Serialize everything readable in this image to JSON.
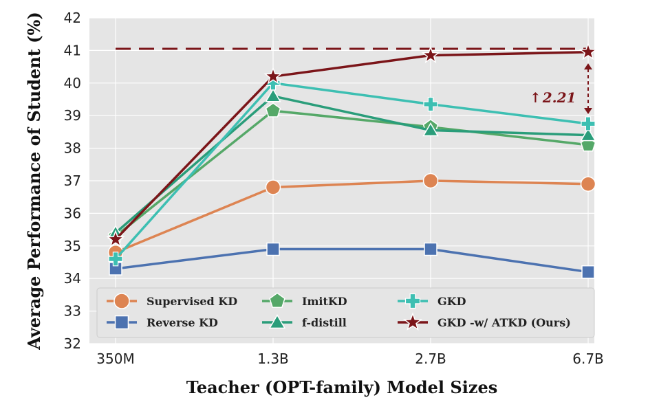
{
  "chart_data": {
    "type": "line",
    "title": "",
    "xlabel": "Teacher (OPT-family) Model Sizes",
    "ylabel": "Average Performance of Student (%)",
    "categories": [
      "350M",
      "1.3B",
      "2.7B",
      "6.7B"
    ],
    "ylim": [
      32,
      42
    ],
    "yticks": [
      "32",
      "33",
      "34",
      "35",
      "36",
      "37",
      "38",
      "39",
      "40",
      "41",
      "42"
    ],
    "grid": true,
    "legend_position": "bottom",
    "series": [
      {
        "name": "Supervised KD",
        "values": [
          34.8,
          36.8,
          37.0,
          36.9
        ],
        "color": "#dd8452",
        "marker": "circle"
      },
      {
        "name": "Reverse KD",
        "values": [
          34.3,
          34.9,
          34.9,
          34.2
        ],
        "color": "#4c72b0",
        "marker": "square"
      },
      {
        "name": "ImitKD",
        "values": [
          35.3,
          39.15,
          38.65,
          38.1
        ],
        "color": "#55a868",
        "marker": "pentagon"
      },
      {
        "name": "f-distill",
        "values": [
          35.4,
          39.6,
          38.55,
          38.4
        ],
        "color": "#2a9d7a",
        "marker": "triangle"
      },
      {
        "name": "GKD",
        "values": [
          34.6,
          40.0,
          39.35,
          38.75
        ],
        "color": "#3dbfb2",
        "marker": "plus"
      },
      {
        "name": "GKD -w/ ATKD (Ours)",
        "values": [
          35.2,
          40.2,
          40.85,
          40.95
        ],
        "color": "#7b1519",
        "marker": "star"
      }
    ],
    "reference_line": {
      "value": 41.05,
      "color": "#7b1519"
    },
    "annotation": {
      "arrow": "↑",
      "text": "2.21",
      "color": "#7b1519"
    }
  }
}
